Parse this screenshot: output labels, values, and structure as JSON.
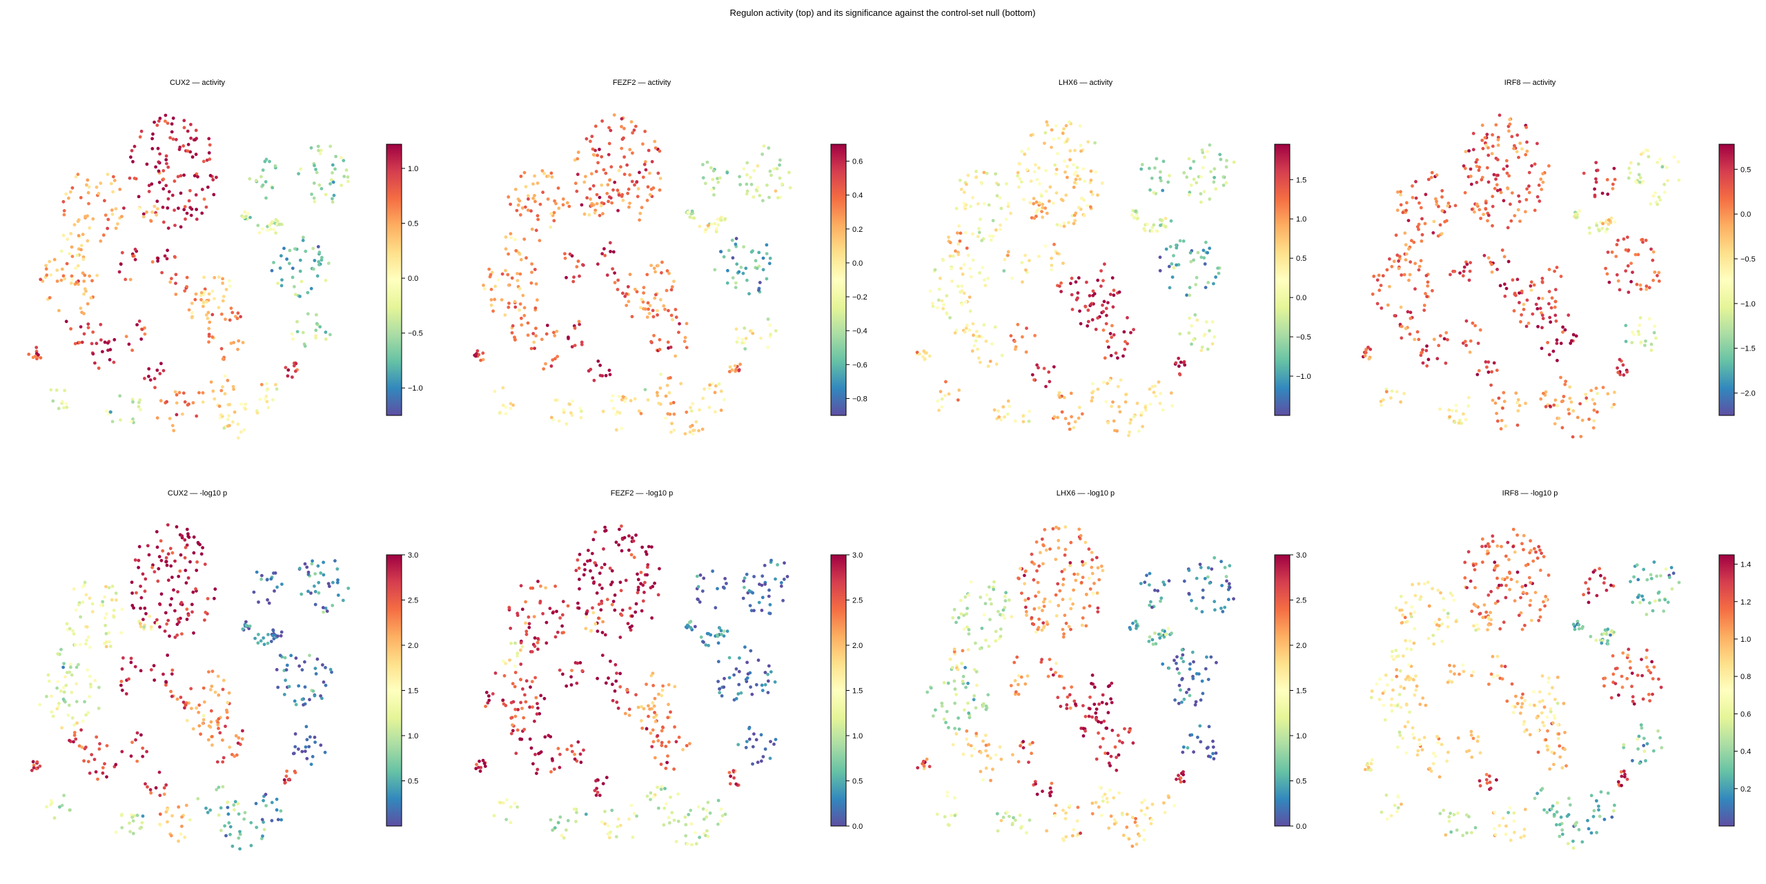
{
  "figure": {
    "suptitle": "Regulon activity (top) and its significance against the control-set null (bottom)"
  },
  "colormap": {
    "name": "Spectral_r",
    "stops": [
      "#5e4fa2",
      "#3288bd",
      "#66c2a5",
      "#abdda4",
      "#e6f598",
      "#ffffbf",
      "#fee08b",
      "#fdae61",
      "#f46d43",
      "#d53e4f",
      "#9e0142"
    ]
  },
  "chart_data": [
    {
      "type": "scatter",
      "title": "CUX2 — activity",
      "colorbar": {
        "vmin": -1.25,
        "vmax": 1.22,
        "ticks": [
          -1.0,
          -0.5,
          0.0,
          0.5,
          1.0
        ],
        "tick_labels": [
          "−1.0",
          "−0.5",
          "0.0",
          "0.5",
          "1.0"
        ]
      },
      "cluster_levels": [
        0.95,
        0.72,
        0.68,
        0.92,
        0.93,
        0.94,
        0.9,
        0.6,
        0.68,
        0.78,
        0.88,
        0.92,
        0.25,
        0.3,
        0.22,
        0.4,
        0.35,
        0.4,
        0.35,
        0.9,
        0.45,
        0.4,
        0.75,
        0.65,
        0.55,
        0.5,
        0.9,
        0.8,
        0.6,
        0.7
      ],
      "axes": "off",
      "legend": "none"
    },
    {
      "type": "scatter",
      "title": "FEZF2 — activity",
      "colorbar": {
        "vmin": -0.9,
        "vmax": 0.7,
        "ticks": [
          -0.8,
          -0.6,
          -0.4,
          -0.2,
          0.0,
          0.2,
          0.4,
          0.6
        ],
        "tick_labels": [
          "−0.8",
          "−0.6",
          "−0.4",
          "−0.2",
          "0.0",
          "0.2",
          "0.4",
          "0.6"
        ]
      },
      "cluster_levels": [
        0.8,
        0.75,
        0.72,
        0.9,
        0.94,
        0.82,
        0.8,
        0.75,
        0.74,
        0.82,
        0.9,
        0.88,
        0.3,
        0.35,
        0.2,
        0.45,
        0.4,
        0.45,
        0.45,
        0.78,
        0.55,
        0.55,
        0.6,
        0.65,
        0.6,
        0.58,
        0.92,
        0.85,
        0.65,
        0.7
      ],
      "axes": "off",
      "legend": "none"
    },
    {
      "type": "scatter",
      "title": "LHX6 — activity",
      "colorbar": {
        "vmin": -1.5,
        "vmax": 1.95,
        "ticks": [
          -1.0,
          -0.5,
          0.0,
          0.5,
          1.0,
          1.5
        ],
        "tick_labels": [
          "−1.0",
          "−0.5",
          "0.0",
          "0.5",
          "1.0",
          "1.5"
        ]
      },
      "cluster_levels": [
        0.58,
        0.5,
        0.5,
        0.56,
        0.6,
        0.55,
        0.55,
        0.95,
        0.94,
        0.92,
        0.56,
        0.75,
        0.3,
        0.35,
        0.18,
        0.45,
        0.4,
        0.42,
        0.4,
        0.95,
        0.6,
        0.55,
        0.7,
        0.65,
        0.62,
        0.6,
        0.96,
        0.9,
        0.7,
        0.72
      ],
      "axes": "off",
      "legend": "none"
    },
    {
      "type": "scatter",
      "title": "IRF8 — activity",
      "colorbar": {
        "vmin": -2.25,
        "vmax": 0.78,
        "ticks": [
          -2.0,
          -1.5,
          -1.0,
          -0.5,
          0.0,
          0.5
        ],
        "tick_labels": [
          "−2.0",
          "−1.5",
          "−1.0",
          "−0.5",
          "0.0",
          "0.5"
        ]
      },
      "cluster_levels": [
        0.84,
        0.82,
        0.8,
        0.86,
        0.9,
        0.85,
        0.82,
        0.85,
        0.86,
        0.92,
        0.82,
        0.84,
        0.92,
        0.45,
        0.85,
        0.4,
        0.35,
        0.4,
        0.55,
        0.92,
        0.6,
        0.55,
        0.7,
        0.75,
        0.7,
        0.65,
        0.9,
        0.92,
        0.75,
        0.78
      ],
      "axes": "off",
      "legend": "none"
    },
    {
      "type": "scatter",
      "title": "CUX2 — -log10 p",
      "colorbar": {
        "vmin": 0.0,
        "vmax": 3.0,
        "ticks": [
          0.5,
          1.0,
          1.5,
          2.0,
          2.5,
          3.0
        ],
        "tick_labels": [
          "0.5",
          "1.0",
          "1.5",
          "2.0",
          "2.5",
          "3.0"
        ]
      },
      "cluster_levels": [
        0.98,
        0.45,
        0.4,
        0.96,
        0.95,
        0.9,
        0.85,
        0.7,
        0.7,
        0.8,
        0.94,
        0.92,
        0.05,
        0.1,
        0.08,
        0.05,
        0.1,
        0.15,
        0.05,
        0.88,
        0.4,
        0.35,
        0.6,
        0.25,
        0.2,
        0.15,
        0.92,
        0.85,
        0.35,
        0.5
      ],
      "axes": "off",
      "legend": "none"
    },
    {
      "type": "scatter",
      "title": "FEZF2 — -log10 p",
      "colorbar": {
        "vmin": 0.0,
        "vmax": 3.0,
        "ticks": [
          0.0,
          0.5,
          1.0,
          1.5,
          2.0,
          2.5,
          3.0
        ],
        "tick_labels": [
          "0.0",
          "0.5",
          "1.0",
          "1.5",
          "2.0",
          "2.5",
          "3.0"
        ]
      },
      "cluster_levels": [
        0.99,
        0.9,
        0.88,
        0.97,
        0.98,
        0.96,
        0.95,
        0.7,
        0.7,
        0.8,
        0.97,
        0.96,
        0.05,
        0.05,
        0.05,
        0.05,
        0.1,
        0.15,
        0.15,
        0.9,
        0.35,
        0.3,
        0.45,
        0.4,
        0.35,
        0.35,
        0.96,
        0.9,
        0.5,
        0.6
      ],
      "axes": "off",
      "legend": "none"
    },
    {
      "type": "scatter",
      "title": "LHX6 — -log10 p",
      "colorbar": {
        "vmin": 0.0,
        "vmax": 3.0,
        "ticks": [
          0.0,
          0.5,
          1.0,
          1.5,
          2.0,
          2.5,
          3.0
        ],
        "tick_labels": [
          "0.0",
          "0.5",
          "1.0",
          "1.5",
          "2.0",
          "2.5",
          "3.0"
        ]
      },
      "cluster_levels": [
        0.75,
        0.35,
        0.3,
        0.7,
        0.8,
        0.65,
        0.65,
        0.98,
        0.97,
        0.95,
        0.8,
        0.8,
        0.1,
        0.1,
        0.05,
        0.05,
        0.2,
        0.25,
        0.25,
        0.95,
        0.45,
        0.4,
        0.6,
        0.65,
        0.6,
        0.55,
        0.96,
        0.9,
        0.6,
        0.7
      ],
      "axes": "off",
      "legend": "none"
    },
    {
      "type": "scatter",
      "title": "IRF8 — -log10 p",
      "colorbar": {
        "vmin": 0.0,
        "vmax": 1.45,
        "ticks": [
          0.2,
          0.4,
          0.6,
          0.8,
          1.0,
          1.2,
          1.4
        ],
        "tick_labels": [
          "0.2",
          "0.4",
          "0.6",
          "0.8",
          "1.0",
          "1.2",
          "1.4"
        ]
      },
      "cluster_levels": [
        0.8,
        0.55,
        0.55,
        0.65,
        0.7,
        0.6,
        0.55,
        0.6,
        0.55,
        0.7,
        0.55,
        0.65,
        0.92,
        0.2,
        0.85,
        0.2,
        0.2,
        0.3,
        0.3,
        0.92,
        0.45,
        0.35,
        0.55,
        0.25,
        0.2,
        0.2,
        0.88,
        0.7,
        0.45,
        0.55
      ],
      "axes": "off",
      "legend": "none"
    }
  ]
}
